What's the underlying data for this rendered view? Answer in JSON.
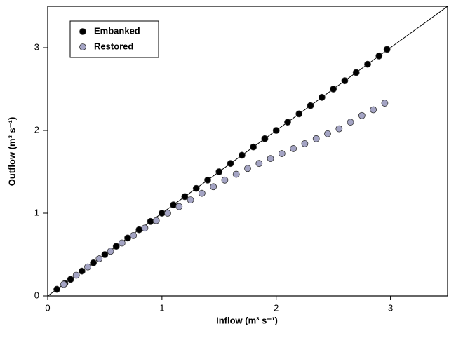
{
  "chart_data": {
    "type": "scatter",
    "x_label": "Inflow (m³ s⁻¹)",
    "y_label": "Outflow (m³ s⁻¹)",
    "xlim": [
      0,
      3.5
    ],
    "ylim": [
      0,
      3.5
    ],
    "xticks": [
      0,
      1,
      2,
      3
    ],
    "yticks": [
      0,
      1,
      2,
      3
    ],
    "legend": "upper left",
    "series": [
      {
        "name": "Embanked",
        "color": "#000000",
        "x": [
          0.08,
          0.15,
          0.2,
          0.3,
          0.4,
          0.5,
          0.6,
          0.7,
          0.8,
          0.9,
          1.0,
          1.1,
          1.2,
          1.3,
          1.4,
          1.5,
          1.6,
          1.7,
          1.8,
          1.9,
          2.0,
          2.1,
          2.2,
          2.3,
          2.4,
          2.5,
          2.6,
          2.7,
          2.8,
          2.9,
          2.97
        ],
        "values": [
          0.08,
          0.15,
          0.2,
          0.3,
          0.4,
          0.5,
          0.6,
          0.7,
          0.8,
          0.9,
          1.0,
          1.1,
          1.2,
          1.3,
          1.4,
          1.5,
          1.6,
          1.7,
          1.8,
          1.9,
          2.0,
          2.1,
          2.2,
          2.3,
          2.4,
          2.5,
          2.6,
          2.7,
          2.8,
          2.9,
          2.98
        ]
      },
      {
        "name": "Restored",
        "color": "#a4a4c4",
        "x": [
          0.14,
          0.25,
          0.35,
          0.45,
          0.55,
          0.65,
          0.75,
          0.85,
          0.95,
          1.05,
          1.15,
          1.25,
          1.35,
          1.45,
          1.55,
          1.65,
          1.75,
          1.85,
          1.95,
          2.05,
          2.15,
          2.25,
          2.35,
          2.45,
          2.55,
          2.65,
          2.75,
          2.85,
          2.95
        ],
        "values": [
          0.14,
          0.25,
          0.35,
          0.45,
          0.54,
          0.64,
          0.73,
          0.82,
          0.91,
          1.0,
          1.08,
          1.16,
          1.24,
          1.32,
          1.4,
          1.47,
          1.54,
          1.6,
          1.66,
          1.72,
          1.78,
          1.84,
          1.9,
          1.96,
          2.02,
          2.1,
          2.18,
          2.25,
          2.33
        ]
      }
    ]
  }
}
